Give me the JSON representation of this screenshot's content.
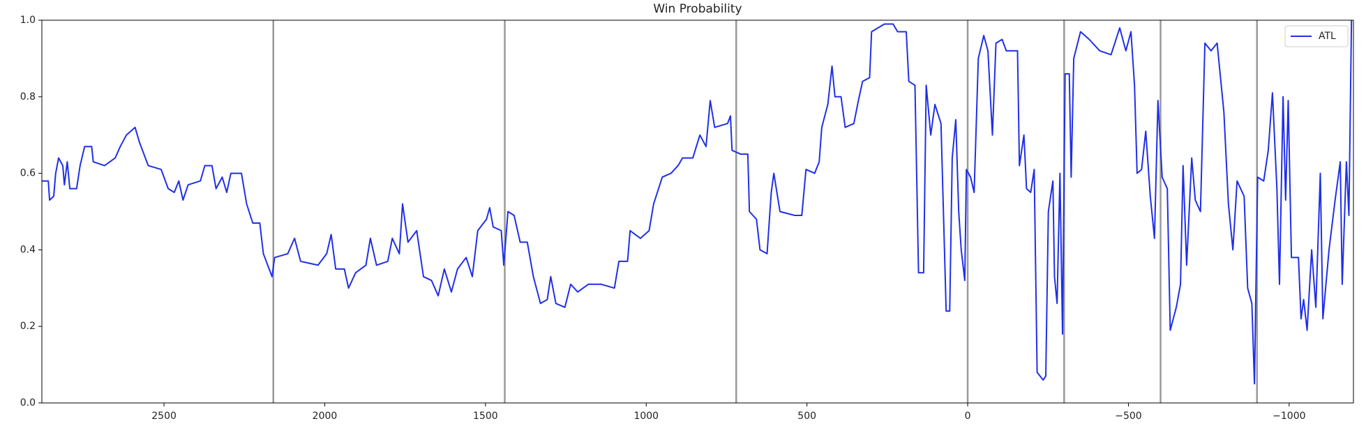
{
  "chart_data": {
    "type": "line",
    "title": "Win Probability",
    "x": [
      2880,
      2860,
      2856,
      2843,
      2837,
      2828,
      2815,
      2810,
      2801,
      2793,
      2772,
      2761,
      2747,
      2725,
      2720,
      2685,
      2652,
      2636,
      2617,
      2590,
      2576,
      2549,
      2509,
      2487,
      2468,
      2454,
      2441,
      2425,
      2387,
      2373,
      2351,
      2338,
      2319,
      2305,
      2292,
      2259,
      2243,
      2224,
      2202,
      2191,
      2164,
      2156,
      2115,
      2094,
      2075,
      2021,
      1994,
      1980,
      1966,
      1939,
      1926,
      1904,
      1872,
      1858,
      1839,
      1804,
      1790,
      1768,
      1758,
      1741,
      1714,
      1693,
      1668,
      1647,
      1628,
      1606,
      1587,
      1560,
      1541,
      1524,
      1497,
      1487,
      1476,
      1451,
      1443,
      1430,
      1411,
      1392,
      1370,
      1351,
      1329,
      1308,
      1297,
      1281,
      1253,
      1235,
      1213,
      1180,
      1140,
      1099,
      1085,
      1058,
      1050,
      1018,
      991,
      977,
      950,
      923,
      901,
      887,
      855,
      833,
      814,
      801,
      787,
      747,
      738,
      733,
      706,
      684,
      679,
      657,
      646,
      624,
      611,
      603,
      584,
      538,
      516,
      503,
      476,
      462,
      454,
      435,
      422,
      413,
      394,
      381,
      354,
      340,
      327,
      305,
      299,
      259,
      232,
      218,
      191,
      183,
      164,
      153,
      137,
      129,
      115,
      102,
      83,
      67,
      56,
      48,
      37,
      28,
      20,
      9,
      4,
      -9,
      -20,
      -33,
      -50,
      -63,
      -77,
      -88,
      -107,
      -120,
      -155,
      -161,
      -175,
      -183,
      -196,
      -207,
      -216,
      -235,
      -243,
      -251,
      -265,
      -270,
      -278,
      -287,
      -295,
      -303,
      -316,
      -322,
      -330,
      -351,
      -378,
      -411,
      -446,
      -473,
      -492,
      -508,
      -519,
      -527,
      -541,
      -554,
      -568,
      -581,
      -592,
      -605,
      -621,
      -630,
      -649,
      -662,
      -670,
      -681,
      -697,
      -708,
      -724,
      -738,
      -757,
      -776,
      -797,
      -811,
      -825,
      -838,
      -860,
      -871,
      -884,
      -892,
      -902,
      -921,
      -935,
      -948,
      -962,
      -970,
      -981,
      -989,
      -997,
      -1007,
      -1029,
      -1037,
      -1045,
      -1056,
      -1070,
      -1083,
      -1097,
      -1105,
      -1124,
      -1143,
      -1159,
      -1165,
      -1178,
      -1186,
      -1194
    ],
    "series": [
      {
        "name": "ATL",
        "color": "#1f2fe8",
        "values": [
          0.58,
          0.58,
          0.53,
          0.54,
          0.6,
          0.64,
          0.62,
          0.57,
          0.63,
          0.56,
          0.56,
          0.62,
          0.67,
          0.67,
          0.63,
          0.62,
          0.64,
          0.67,
          0.7,
          0.72,
          0.68,
          0.62,
          0.61,
          0.56,
          0.55,
          0.58,
          0.53,
          0.57,
          0.58,
          0.62,
          0.62,
          0.56,
          0.59,
          0.55,
          0.6,
          0.6,
          0.52,
          0.47,
          0.47,
          0.39,
          0.33,
          0.38,
          0.39,
          0.43,
          0.37,
          0.36,
          0.39,
          0.44,
          0.35,
          0.35,
          0.3,
          0.34,
          0.36,
          0.43,
          0.36,
          0.37,
          0.43,
          0.39,
          0.52,
          0.42,
          0.45,
          0.33,
          0.32,
          0.28,
          0.35,
          0.29,
          0.35,
          0.38,
          0.33,
          0.45,
          0.48,
          0.51,
          0.46,
          0.45,
          0.36,
          0.5,
          0.49,
          0.42,
          0.42,
          0.33,
          0.26,
          0.27,
          0.33,
          0.26,
          0.25,
          0.31,
          0.29,
          0.31,
          0.31,
          0.3,
          0.37,
          0.37,
          0.45,
          0.43,
          0.45,
          0.52,
          0.59,
          0.6,
          0.62,
          0.64,
          0.64,
          0.7,
          0.67,
          0.79,
          0.72,
          0.73,
          0.75,
          0.66,
          0.65,
          0.65,
          0.5,
          0.48,
          0.4,
          0.39,
          0.55,
          0.6,
          0.5,
          0.49,
          0.49,
          0.61,
          0.6,
          0.63,
          0.72,
          0.78,
          0.88,
          0.8,
          0.8,
          0.72,
          0.73,
          0.79,
          0.84,
          0.85,
          0.97,
          0.99,
          0.99,
          0.97,
          0.97,
          0.84,
          0.83,
          0.34,
          0.34,
          0.83,
          0.7,
          0.78,
          0.73,
          0.24,
          0.24,
          0.64,
          0.74,
          0.5,
          0.4,
          0.32,
          0.61,
          0.59,
          0.55,
          0.9,
          0.96,
          0.92,
          0.7,
          0.94,
          0.95,
          0.92,
          0.92,
          0.62,
          0.7,
          0.56,
          0.55,
          0.61,
          0.08,
          0.06,
          0.07,
          0.5,
          0.58,
          0.33,
          0.26,
          0.6,
          0.18,
          0.86,
          0.86,
          0.59,
          0.9,
          0.97,
          0.95,
          0.92,
          0.91,
          0.98,
          0.92,
          0.97,
          0.83,
          0.6,
          0.61,
          0.71,
          0.54,
          0.43,
          0.79,
          0.59,
          0.56,
          0.19,
          0.25,
          0.31,
          0.62,
          0.36,
          0.64,
          0.53,
          0.5,
          0.94,
          0.92,
          0.94,
          0.76,
          0.52,
          0.4,
          0.58,
          0.54,
          0.3,
          0.26,
          0.05,
          0.59,
          0.58,
          0.66,
          0.81,
          0.56,
          0.31,
          0.8,
          0.53,
          0.79,
          0.38,
          0.38,
          0.22,
          0.27,
          0.19,
          0.4,
          0.25,
          0.6,
          0.22,
          0.4,
          0.53,
          0.63,
          0.31,
          0.63,
          0.49,
          1.0
        ]
      }
    ],
    "xlim": [
      2880,
      -1200
    ],
    "xticks": [
      2500,
      2000,
      1500,
      1000,
      500,
      0,
      {
        "value": -500,
        "label": "−500"
      },
      {
        "value": -1000,
        "label": "−1000"
      }
    ],
    "ylim": [
      0,
      1
    ],
    "yticks": [
      {
        "value": 0,
        "label": "0.0"
      },
      0.2,
      0.4,
      0.6,
      0.8,
      {
        "value": 1,
        "label": "1.0"
      }
    ],
    "vlines": [
      2160,
      1440,
      720,
      0,
      -300,
      -600,
      -900
    ],
    "vline_color": "#999999",
    "legend": "upper right"
  }
}
